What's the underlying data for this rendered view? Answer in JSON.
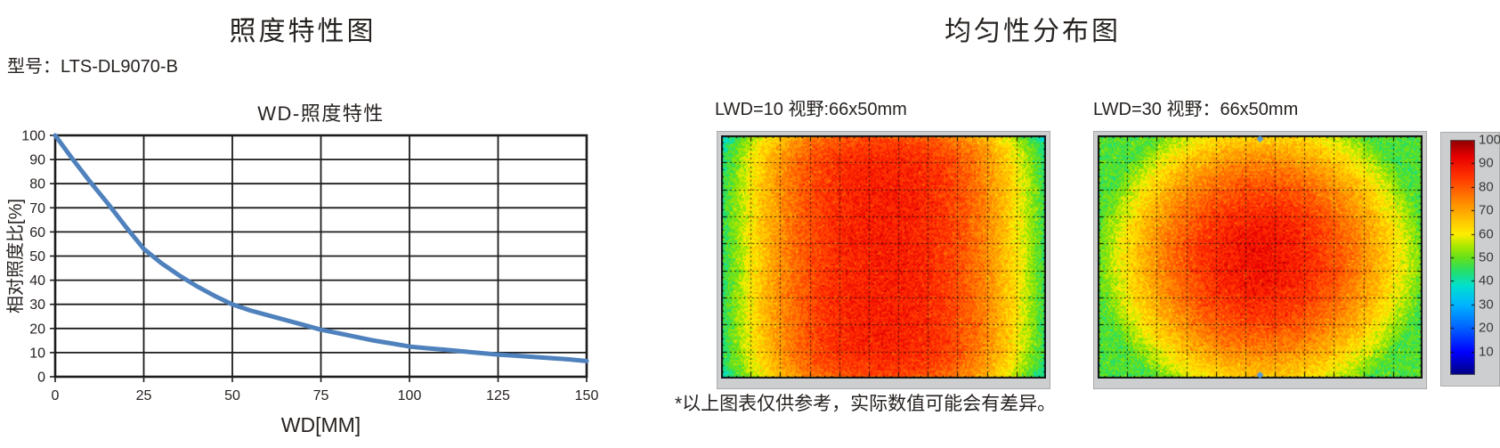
{
  "left": {
    "title": "照度特性图",
    "model_label": "型号：LTS-DL9070-B"
  },
  "right": {
    "title": "均匀性分布图",
    "footnote": "*以上图表仅供参考，实际数值可能会有差异。"
  },
  "chart_data": [
    {
      "type": "line",
      "title": "WD-照度特性",
      "xlabel": "WD[MM]",
      "ylabel": "相对照度比[%]",
      "xlim": [
        0,
        150
      ],
      "ylim": [
        0,
        100
      ],
      "xticks": [
        0,
        25,
        50,
        75,
        100,
        125,
        150
      ],
      "yticks": [
        0,
        10,
        20,
        30,
        40,
        50,
        60,
        70,
        80,
        90,
        100
      ],
      "grid": true,
      "grid_color": "#1c1c1c",
      "line_color": "#4f81bd",
      "x": [
        0,
        5,
        10,
        15,
        20,
        25,
        30,
        35,
        40,
        45,
        50,
        55,
        60,
        65,
        70,
        75,
        80,
        85,
        90,
        95,
        100,
        105,
        110,
        115,
        120,
        125,
        130,
        135,
        140,
        145,
        150
      ],
      "y": [
        100,
        90,
        80.5,
        71.5,
        62,
        53,
        47,
        42,
        37.5,
        33.5,
        30,
        27.5,
        25.5,
        23.5,
        21.5,
        19.5,
        18,
        16.5,
        15,
        13.8,
        12.5,
        11.8,
        11.2,
        10.5,
        9.8,
        9.2,
        8.7,
        8.2,
        7.7,
        7.2,
        6.5
      ]
    },
    {
      "type": "heatmap",
      "label": "LWD=10 视野:66x50mm",
      "profile": "horizontal",
      "center_value": 88,
      "edge_value": 44,
      "noise": 4,
      "value_range": [
        0,
        100
      ],
      "grid": true,
      "cursor_markers": false
    },
    {
      "type": "heatmap",
      "label": "LWD=30 视野：66x50mm",
      "profile": "radial",
      "center_value": 90,
      "edge_value": 48,
      "noise": 4,
      "value_range": [
        0,
        100
      ],
      "grid": true,
      "cursor_markers": true
    },
    {
      "type": "colorbar",
      "range": [
        0,
        100
      ],
      "ticks": [
        10,
        20,
        30,
        40,
        50,
        60,
        70,
        80,
        90,
        100
      ],
      "colormap_stops": [
        [
          0.0,
          "#00007f"
        ],
        [
          0.1,
          "#0000ff"
        ],
        [
          0.2,
          "#0060ff"
        ],
        [
          0.3,
          "#00b4ff"
        ],
        [
          0.38,
          "#00e0d0"
        ],
        [
          0.45,
          "#2adf60"
        ],
        [
          0.5,
          "#66e01a"
        ],
        [
          0.55,
          "#aae800"
        ],
        [
          0.6,
          "#ffee00"
        ],
        [
          0.68,
          "#ffb400"
        ],
        [
          0.75,
          "#ff8000"
        ],
        [
          0.85,
          "#ff3000"
        ],
        [
          0.93,
          "#e80000"
        ],
        [
          1.0,
          "#8f0000"
        ]
      ],
      "marker_color": "#5b9bd5"
    }
  ]
}
